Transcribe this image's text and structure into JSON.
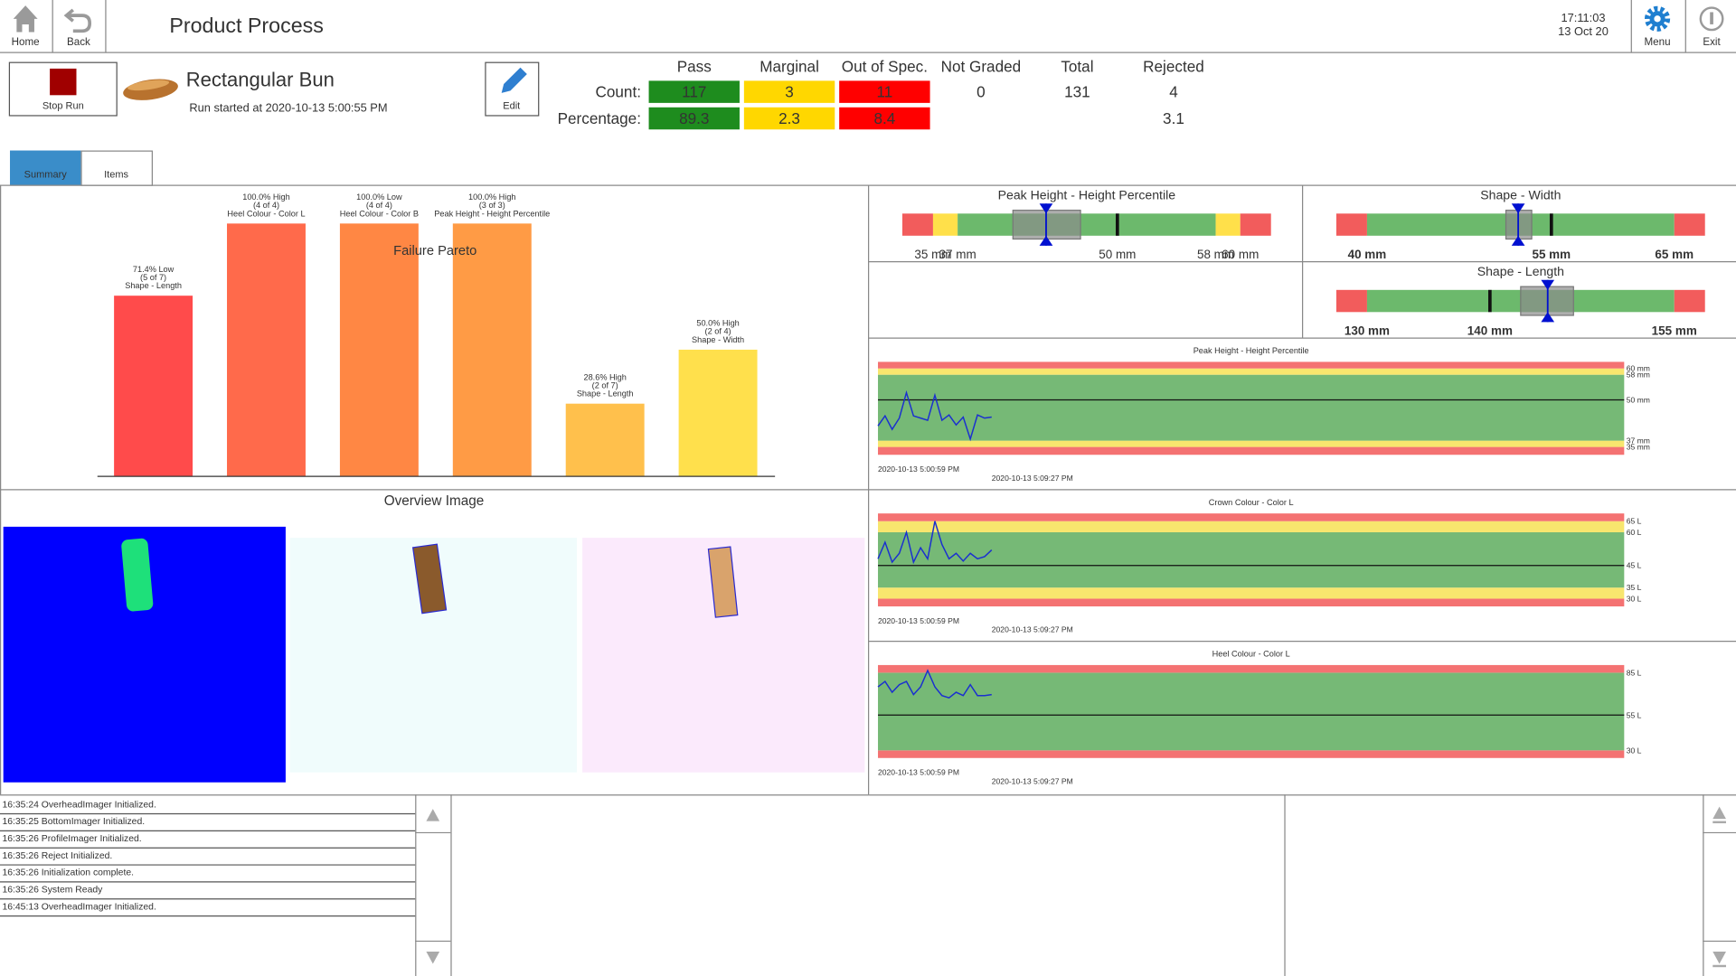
{
  "header": {
    "home": "Home",
    "back": "Back",
    "title": "Product Process",
    "time": "17:11:03",
    "date": "13 Oct 20",
    "menu": "Menu",
    "exit": "Exit"
  },
  "run": {
    "stop": "Stop Run",
    "product": "Rectangular Bun",
    "started": "Run started at 2020-10-13 5:00:55 PM",
    "edit": "Edit"
  },
  "stats": {
    "columns": [
      "Pass",
      "Marginal",
      "Out of Spec.",
      "Not Graded",
      "Total",
      "Rejected"
    ],
    "colors": [
      "#1e8c1e",
      "#ffd700",
      "#ff0000"
    ],
    "header_colors": [
      "#1a8f1a",
      "#e8c400",
      "#ee0000",
      "#444444",
      "#444444",
      "#444444"
    ],
    "row_labels": [
      "Count:",
      "Percentage:"
    ],
    "counts": [
      117,
      3,
      11,
      0,
      131,
      4
    ],
    "percentages": [
      89.3,
      2.3,
      8.4,
      3.1
    ]
  },
  "tabs": [
    "Summary",
    "Items"
  ],
  "pareto": {
    "type": "bar",
    "title": "Failure Pareto",
    "categories": [
      "Shape - Length",
      "Heel Colour - Color L",
      "Heel Colour - Color B",
      "Peak Height - Height Percentile",
      "Shape - Length",
      "Shape - Width"
    ],
    "values": [
      71.4,
      100,
      100,
      100,
      28.6,
      50
    ],
    "value_labels": [
      "71.4% Low",
      "100.0% High",
      "100.0% Low",
      "100.0% High",
      "28.6% High",
      "50.0% High"
    ],
    "details": [
      "(5 of 7)",
      "(4 of 4)",
      "(4 of 4)",
      "(3 of 3)",
      "(2 of 7)",
      "(2 of 4)"
    ],
    "colors": [
      "#ff4b4b",
      "#ff6a4b",
      "#ff8744",
      "#ff9b45",
      "#ffc04c",
      "#ffe04c"
    ],
    "ylim": [
      0,
      100
    ]
  },
  "gauges": [
    {
      "title": "Peak Height - Height Percentile",
      "xlim": [
        32.5,
        62.5
      ],
      "zones": [
        {
          "to": 35,
          "color": "#f25c5c"
        },
        {
          "to": 37,
          "color": "#ffe04a"
        },
        {
          "to": 58,
          "color": "#6cb96c"
        },
        {
          "to": 60,
          "color": "#ffe04a"
        },
        {
          "to": 62.5,
          "color": "#f25c5c"
        }
      ],
      "ticks": [
        {
          "value": 35,
          "label": "35 mm"
        },
        {
          "value": 37,
          "label": "37 mm"
        },
        {
          "value": 50,
          "label": "50 mm"
        },
        {
          "value": 58,
          "label": "58 mm"
        },
        {
          "value": 60,
          "label": "60 mm"
        }
      ],
      "target": 50,
      "marker": 44.2,
      "range": [
        41.5,
        47.0
      ]
    },
    {
      "title": "Shape - Width",
      "xlim": [
        37.5,
        67.5
      ],
      "zones": [
        {
          "to": 40,
          "color": "#f25c5c"
        },
        {
          "to": 65,
          "color": "#6cb96c"
        },
        {
          "to": 67.5,
          "color": "#f25c5c"
        }
      ],
      "ticks": [
        {
          "value": 40,
          "label": "40 mm"
        },
        {
          "value": 55,
          "label": "55 mm"
        },
        {
          "value": 65,
          "label": "65 mm"
        }
      ],
      "target": 55,
      "marker": 52.3,
      "range": [
        51.3,
        53.4
      ]
    },
    {
      "title": "Shape - Length",
      "xlim": [
        127.5,
        157.5
      ],
      "zones": [
        {
          "to": 130,
          "color": "#f25c5c"
        },
        {
          "to": 155,
          "color": "#6cb96c"
        },
        {
          "to": 157.5,
          "color": "#f25c5c"
        }
      ],
      "ticks": [
        {
          "value": 130,
          "label": "130 mm"
        },
        {
          "value": 140,
          "label": "140 mm"
        },
        {
          "value": 155,
          "label": "155 mm"
        }
      ],
      "target": 140,
      "marker": 144.7,
      "range": [
        142.5,
        146.8
      ]
    }
  ],
  "trends": [
    {
      "type": "line",
      "title": "Peak Height - Height Percentile",
      "ylim": [
        32.5,
        62.1
      ],
      "xlim": [
        0,
        105
      ],
      "zones": [
        {
          "to": 35,
          "color": "#f47272"
        },
        {
          "to": 37,
          "color": "#f8e66e"
        },
        {
          "to": 58,
          "color": "#76b976"
        },
        {
          "to": 60,
          "color": "#f8e66e"
        },
        {
          "to": 62.1,
          "color": "#f47272"
        }
      ],
      "yticks": [
        {
          "value": 60,
          "label": "60 mm"
        },
        {
          "value": 58,
          "label": "58 mm"
        },
        {
          "value": 50,
          "label": "50 mm"
        },
        {
          "value": 37,
          "label": "37 mm"
        },
        {
          "value": 35,
          "label": "35 mm"
        }
      ],
      "xticks": [
        {
          "value": 0,
          "label": "2020-10-13 5:00:59 PM"
        },
        {
          "value": 16,
          "label": "2020-10-13 5:09:27 PM"
        }
      ],
      "target": 50,
      "color": "#1a2fd0",
      "x": [
        0,
        1,
        2,
        3,
        4,
        5,
        6,
        7,
        8,
        9,
        10,
        11,
        12,
        13,
        14,
        15,
        16
      ],
      "values": [
        41.7,
        44.9,
        40.6,
        44.2,
        52.3,
        44.9,
        44.2,
        43.5,
        51.5,
        43.5,
        45.2,
        42.0,
        44.5,
        37.5,
        45.2,
        44.2,
        44.5
      ]
    },
    {
      "type": "line",
      "title": "Crown Colour - Color L",
      "ylim": [
        26.5,
        68.5
      ],
      "xlim": [
        0,
        105
      ],
      "zones": [
        {
          "to": 30,
          "color": "#f47272"
        },
        {
          "to": 35,
          "color": "#f8e66e"
        },
        {
          "to": 60,
          "color": "#76b976"
        },
        {
          "to": 65,
          "color": "#f8e66e"
        },
        {
          "to": 68.5,
          "color": "#f47272"
        }
      ],
      "yticks": [
        {
          "value": 65,
          "label": "65 L"
        },
        {
          "value": 60,
          "label": "60 L"
        },
        {
          "value": 45,
          "label": "45 L"
        },
        {
          "value": 35,
          "label": "35 L"
        },
        {
          "value": 30,
          "label": "30 L"
        }
      ],
      "xticks": [
        {
          "value": 0,
          "label": "2020-10-13 5:00:59 PM"
        },
        {
          "value": 16,
          "label": "2020-10-13 5:09:27 PM"
        }
      ],
      "target": 45,
      "color": "#1a2fd0",
      "x": [
        0,
        1,
        2,
        3,
        4,
        5,
        6,
        7,
        8,
        9,
        10,
        11,
        12,
        13,
        14,
        15,
        16
      ],
      "values": [
        48,
        55.5,
        46.5,
        50.5,
        60,
        46.5,
        53,
        48,
        65,
        54.5,
        48,
        50.5,
        47,
        50.5,
        48,
        49,
        52
      ]
    },
    {
      "type": "line",
      "title": "Heel Colour - Color L",
      "ylim": [
        24.6,
        90.4
      ],
      "xlim": [
        0,
        105
      ],
      "zones": [
        {
          "to": 30,
          "color": "#f47272"
        },
        {
          "to": 85,
          "color": "#76b976"
        },
        {
          "to": 90.4,
          "color": "#f47272"
        }
      ],
      "yticks": [
        {
          "value": 85,
          "label": "85 L"
        },
        {
          "value": 55,
          "label": "55 L"
        },
        {
          "value": 30,
          "label": "30 L"
        }
      ],
      "xticks": [
        {
          "value": 0,
          "label": "2020-10-13 5:00:59 PM"
        },
        {
          "value": 16,
          "label": "2020-10-13 5:09:27 PM"
        }
      ],
      "target": 55,
      "color": "#1a2fd0",
      "x": [
        0,
        1,
        2,
        3,
        4,
        5,
        6,
        7,
        8,
        9,
        10,
        11,
        12,
        13,
        14,
        15,
        16
      ],
      "values": [
        75,
        78.8,
        71.1,
        76.5,
        78.8,
        69.5,
        75,
        86.6,
        75,
        68.8,
        67.2,
        71.1,
        68.8,
        76.5,
        68.8,
        68.8,
        69.5
      ]
    }
  ],
  "overview": {
    "title": "Overview Image"
  },
  "log": [
    "16:35:24 OverheadImager Initialized.",
    "16:35:25 BottomImager Initialized.",
    "16:35:26 ProfileImager Initialized.",
    "16:35:26 Reject Initialized.",
    "16:35:26 Initialization complete.",
    "16:35:26 System Ready",
    "16:45:13 OverheadImager Initialized."
  ]
}
